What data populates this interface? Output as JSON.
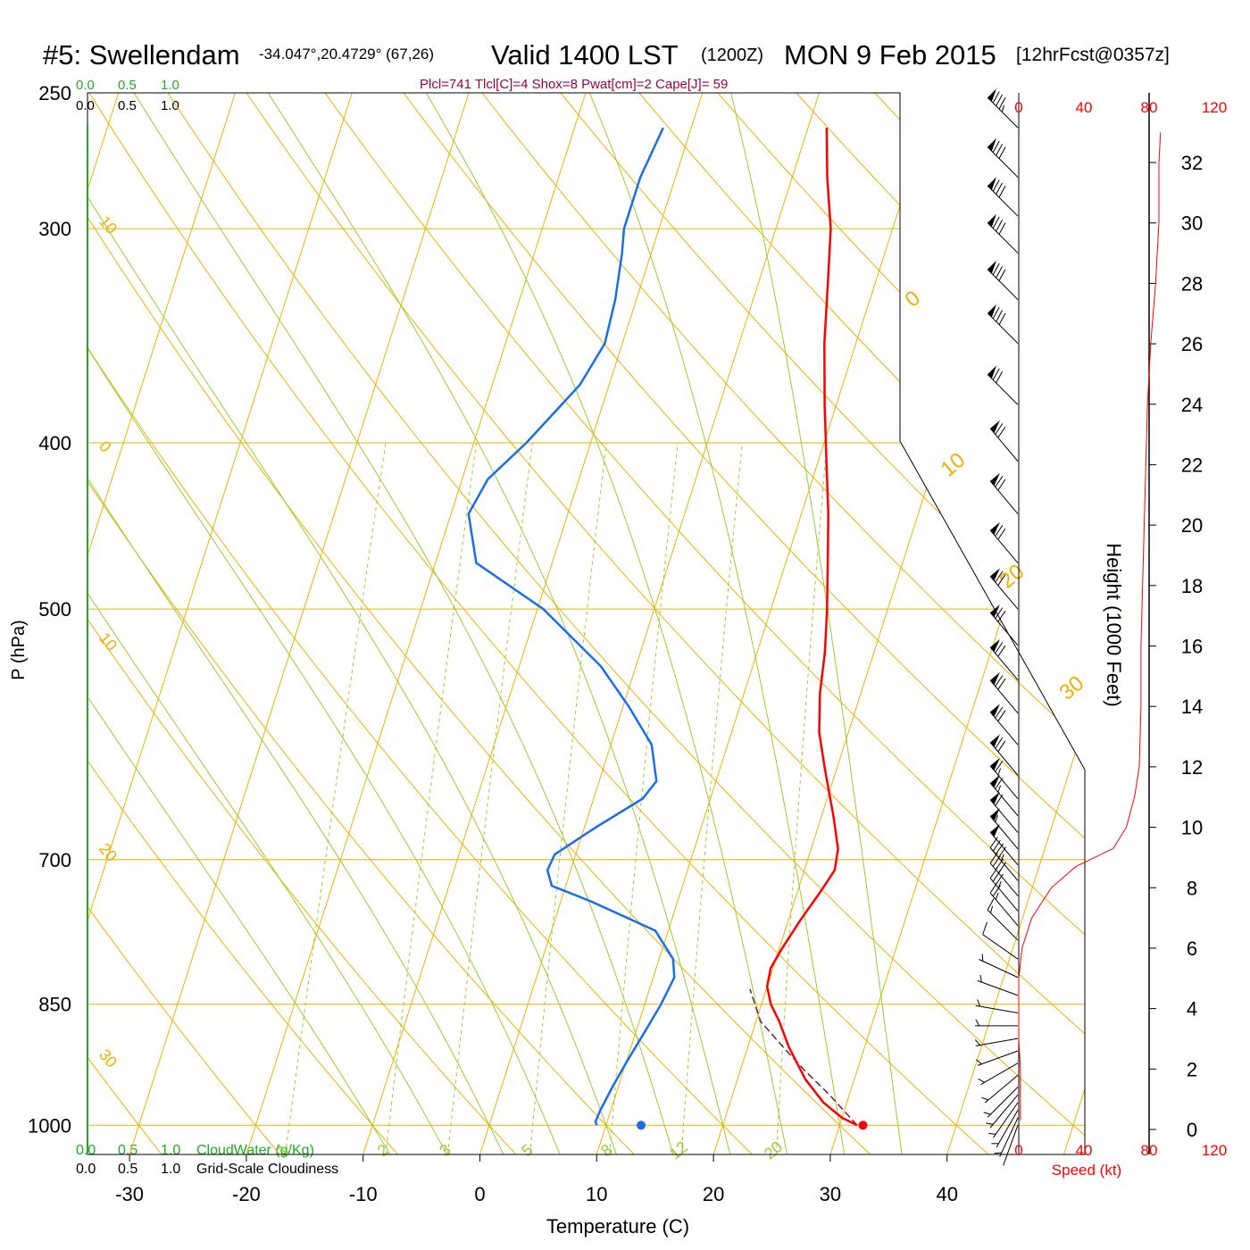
{
  "header": {
    "station": "#5: Swellendam",
    "coords": "-34.047°,20.4729° (67,26)",
    "valid": "Valid 1400 LST",
    "zulu": "(1200Z)",
    "date": "MON 9 Feb 2015",
    "forecast": "[12hrFcst@0357z]",
    "indices": "Plcl=741 Tlcl[C]=4 Shox=8 Pwat[cm]=2 Cape[J]= 59"
  },
  "colors": {
    "temperature": "#ff0000",
    "dewpoint": "#1a6ee8",
    "isobar": "#f0b000",
    "isotherm": "#f0b000",
    "dry_adiabat": "#f0b000",
    "moist_adiabat": "#99cc33",
    "mixing_ratio": "#99cc33",
    "indices": "#a0004a",
    "cloud_water": "#22aa22",
    "wind_speed": "#ff0000"
  },
  "top_scales": {
    "cloudwater": [
      "0.0",
      "0.5",
      "1.0"
    ],
    "cloudiness": [
      "0.0",
      "0.5",
      "1.0"
    ]
  },
  "bottom_scales": {
    "cloudwater": [
      "0.0",
      "0.5",
      "1.0"
    ],
    "cloudwater_label": "CloudWater (g/Kg)",
    "cloudiness": [
      "0.0",
      "0.5",
      "1.0"
    ],
    "cloudiness_label": "Grid-Scale Cloudiness"
  },
  "chart_data": {
    "type": "line",
    "diagram": "skew-T log-p",
    "xlabel": "Temperature (C)",
    "ylabel": "P (hPa)",
    "y2label": "Height (1000 Feet)",
    "x_ticks": [
      "-30",
      "-20",
      "-10",
      "0",
      "10",
      "20",
      "30",
      "40"
    ],
    "x_tick_values": [
      -30,
      -20,
      -10,
      0,
      10,
      20,
      30,
      40
    ],
    "xlim": [
      -34,
      44
    ],
    "ylim": [
      1040,
      250
    ],
    "y_scale": "log",
    "pressure_ticks": [
      "250",
      "300",
      "400",
      "500",
      "700",
      "850",
      "1000"
    ],
    "pressure_values": [
      250,
      300,
      400,
      500,
      700,
      850,
      1000
    ],
    "height_ticks": [
      "0",
      "2",
      "4",
      "6",
      "8",
      "10",
      "12",
      "14",
      "16",
      "18",
      "20",
      "22",
      "24",
      "26",
      "28",
      "30",
      "32"
    ],
    "height_values": [
      0,
      2,
      4,
      6,
      8,
      10,
      12,
      14,
      16,
      18,
      20,
      22,
      24,
      26,
      28,
      30,
      32
    ],
    "isotherm_labels": [
      {
        "text": "30",
        "t": -30,
        "p": 910
      },
      {
        "text": "20",
        "t": -20,
        "p": 690
      },
      {
        "text": "10",
        "t": -10,
        "p": 520
      },
      {
        "text": "0",
        "t": 0,
        "p": 402
      },
      {
        "text": "10",
        "t": 10,
        "p": 300
      },
      {
        "text": "0",
        "t": 0,
        "p": 330
      },
      {
        "text": "10",
        "t": 10,
        "p": 425
      },
      {
        "text": "20",
        "t": 20,
        "p": 495
      },
      {
        "text": "30",
        "t": 30,
        "p": 590
      }
    ],
    "mixing_ratio_labels": [
      "1",
      "2",
      "3",
      "5",
      "8",
      "12",
      "20"
    ],
    "mixing_ratio_values": [
      1,
      2,
      3,
      5,
      8,
      12,
      20
    ],
    "temperature": [
      [
        1000,
        31.5
      ],
      [
        990,
        30.0
      ],
      [
        970,
        28.0
      ],
      [
        940,
        25.8
      ],
      [
        900,
        23.5
      ],
      [
        870,
        22.0
      ],
      [
        850,
        20.8
      ],
      [
        830,
        20.0
      ],
      [
        810,
        19.8
      ],
      [
        790,
        20.2
      ],
      [
        760,
        21.0
      ],
      [
        730,
        22.0
      ],
      [
        710,
        22.6
      ],
      [
        690,
        22.3
      ],
      [
        660,
        21.0
      ],
      [
        620,
        19.0
      ],
      [
        590,
        17.5
      ],
      [
        560,
        16.5
      ],
      [
        530,
        15.8
      ],
      [
        500,
        14.8
      ],
      [
        470,
        13.6
      ],
      [
        440,
        12.3
      ],
      [
        410,
        10.7
      ],
      [
        380,
        9.0
      ],
      [
        350,
        7.3
      ],
      [
        320,
        5.8
      ],
      [
        300,
        4.7
      ],
      [
        280,
        3.0
      ],
      [
        262,
        1.6
      ]
    ],
    "dewpoint": [
      [
        1000,
        9.2
      ],
      [
        995,
        9.0
      ],
      [
        980,
        9.1
      ],
      [
        950,
        9.5
      ],
      [
        920,
        10.0
      ],
      [
        880,
        10.8
      ],
      [
        850,
        11.4
      ],
      [
        820,
        11.8
      ],
      [
        800,
        11.2
      ],
      [
        770,
        8.9
      ],
      [
        740,
        2.5
      ],
      [
        725,
        -1.2
      ],
      [
        710,
        -2.0
      ],
      [
        695,
        -1.8
      ],
      [
        670,
        1.0
      ],
      [
        645,
        4.2
      ],
      [
        630,
        4.9
      ],
      [
        600,
        3.5
      ],
      [
        570,
        0.5
      ],
      [
        540,
        -3.0
      ],
      [
        500,
        -9.5
      ],
      [
        470,
        -16.5
      ],
      [
        440,
        -18.5
      ],
      [
        420,
        -17.8
      ],
      [
        400,
        -15.5
      ],
      [
        370,
        -12.5
      ],
      [
        350,
        -11.5
      ],
      [
        330,
        -11.8
      ],
      [
        310,
        -12.5
      ],
      [
        300,
        -13.0
      ],
      [
        280,
        -13.0
      ],
      [
        262,
        -12.4
      ]
    ],
    "parcel": [
      [
        1000,
        31.5
      ],
      [
        960,
        28.3
      ],
      [
        930,
        25.6
      ],
      [
        900,
        23.0
      ],
      [
        870,
        20.4
      ],
      [
        833,
        18.6
      ]
    ],
    "surface_temperature_marker": {
      "p": 1000,
      "t": 32.0
    },
    "surface_dewpoint_marker": {
      "p": 1000,
      "t": 13.0
    },
    "wind_speed_ticks": [
      "0",
      "40",
      "80",
      "120"
    ],
    "wind_speed_values": [
      0,
      40,
      80,
      120
    ],
    "wind_speed_label": "Speed (kt)",
    "wind_speed_profile": [
      [
        0.3,
        1
      ],
      [
        1,
        1
      ],
      [
        2,
        1
      ],
      [
        3,
        0
      ],
      [
        4,
        0
      ],
      [
        5,
        0
      ],
      [
        6,
        2
      ],
      [
        7,
        8
      ],
      [
        8,
        20
      ],
      [
        8.7,
        35
      ],
      [
        9.3,
        58
      ],
      [
        10,
        66
      ],
      [
        11,
        71
      ],
      [
        12,
        74
      ],
      [
        14,
        75
      ],
      [
        16,
        75
      ],
      [
        18,
        76
      ],
      [
        20,
        77
      ],
      [
        22,
        78
      ],
      [
        24,
        79
      ],
      [
        26,
        81
      ],
      [
        28,
        84
      ],
      [
        29,
        85
      ],
      [
        30,
        86
      ],
      [
        31,
        86
      ],
      [
        32,
        86
      ],
      [
        33,
        87
      ]
    ],
    "wind_barbs": [
      {
        "p": 1000,
        "dir": 200,
        "spd": 2
      },
      {
        "p": 990,
        "dir": 205,
        "spd": 3
      },
      {
        "p": 980,
        "dir": 210,
        "spd": 3
      },
      {
        "p": 970,
        "dir": 215,
        "spd": 4
      },
      {
        "p": 960,
        "dir": 220,
        "spd": 4
      },
      {
        "p": 950,
        "dir": 225,
        "spd": 5
      },
      {
        "p": 935,
        "dir": 230,
        "spd": 5
      },
      {
        "p": 920,
        "dir": 240,
        "spd": 5
      },
      {
        "p": 905,
        "dir": 250,
        "spd": 5
      },
      {
        "p": 890,
        "dir": 260,
        "spd": 5
      },
      {
        "p": 875,
        "dir": 270,
        "spd": 5
      },
      {
        "p": 860,
        "dir": 280,
        "spd": 4
      },
      {
        "p": 840,
        "dir": 290,
        "spd": 4
      },
      {
        "p": 820,
        "dir": 295,
        "spd": 5
      },
      {
        "p": 800,
        "dir": 305,
        "spd": 10
      },
      {
        "p": 780,
        "dir": 315,
        "spd": 15
      },
      {
        "p": 765,
        "dir": 320,
        "spd": 25
      },
      {
        "p": 750,
        "dir": 320,
        "spd": 35
      },
      {
        "p": 735,
        "dir": 320,
        "spd": 40
      },
      {
        "p": 720,
        "dir": 320,
        "spd": 45
      },
      {
        "p": 705,
        "dir": 320,
        "spd": 50
      },
      {
        "p": 690,
        "dir": 320,
        "spd": 55
      },
      {
        "p": 675,
        "dir": 320,
        "spd": 60
      },
      {
        "p": 660,
        "dir": 320,
        "spd": 65
      },
      {
        "p": 645,
        "dir": 320,
        "spd": 65
      },
      {
        "p": 625,
        "dir": 320,
        "spd": 70
      },
      {
        "p": 600,
        "dir": 320,
        "spd": 70
      },
      {
        "p": 575,
        "dir": 320,
        "spd": 70
      },
      {
        "p": 550,
        "dir": 320,
        "spd": 70
      },
      {
        "p": 525,
        "dir": 320,
        "spd": 70
      },
      {
        "p": 500,
        "dir": 320,
        "spd": 70
      },
      {
        "p": 470,
        "dir": 320,
        "spd": 70
      },
      {
        "p": 440,
        "dir": 320,
        "spd": 70
      },
      {
        "p": 410,
        "dir": 320,
        "spd": 70
      },
      {
        "p": 380,
        "dir": 315,
        "spd": 70
      },
      {
        "p": 350,
        "dir": 315,
        "spd": 80
      },
      {
        "p": 330,
        "dir": 315,
        "spd": 80
      },
      {
        "p": 310,
        "dir": 315,
        "spd": 80
      },
      {
        "p": 295,
        "dir": 315,
        "spd": 80
      },
      {
        "p": 280,
        "dir": 315,
        "spd": 80
      },
      {
        "p": 262,
        "dir": 315,
        "spd": 85
      }
    ]
  }
}
